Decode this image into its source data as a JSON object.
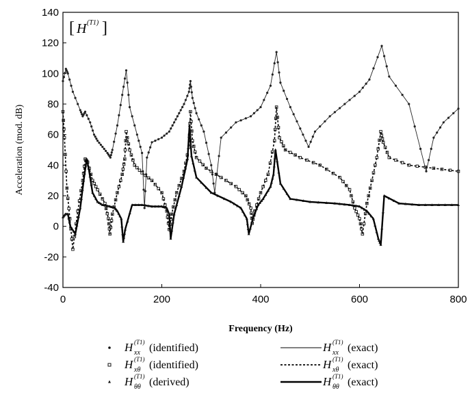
{
  "chart_data": {
    "type": "line",
    "title": "",
    "inset_label": "H",
    "inset_label_superscript": "(T1)",
    "xlabel": "Frequency (Hz)",
    "ylabel": "Acceleration (mod. dB)",
    "xlim": [
      0,
      800
    ],
    "ylim": [
      -40,
      140
    ],
    "x_ticks": [
      "0",
      "200",
      "400",
      "600",
      "800"
    ],
    "y_ticks": [
      "-40",
      "-20",
      "0",
      "20",
      "40",
      "60",
      "80",
      "100",
      "120",
      "140"
    ],
    "grid": false,
    "legend_placement": "bottom",
    "legend": [
      {
        "symbol": "H",
        "subscript": "xx",
        "superscript": "(T1)",
        "suffix": "(identified)",
        "style": "dots"
      },
      {
        "symbol": "H",
        "subscript": "xx",
        "superscript": "(T1)",
        "suffix": "(exact)",
        "style": "thin-solid"
      },
      {
        "symbol": "H",
        "subscript": "xθ",
        "superscript": "(T1)",
        "suffix": "(identified)",
        "style": "squares"
      },
      {
        "symbol": "H",
        "subscript": "xθ",
        "superscript": "(T1)",
        "suffix": "(exact)",
        "style": "dotted"
      },
      {
        "symbol": "H",
        "subscript": "θθ",
        "superscript": "(T1)",
        "suffix": "(derived)",
        "style": "triangles"
      },
      {
        "symbol": "H",
        "subscript": "θθ",
        "superscript": "(T1)",
        "suffix": "(exact)",
        "style": "thick-solid"
      }
    ],
    "series": [
      {
        "key": "xx",
        "x": [
          0,
          6,
          10,
          20,
          35,
          40,
          45,
          55,
          63,
          70,
          80,
          90,
          96,
          100,
          110,
          120,
          128,
          135,
          150,
          160,
          165,
          170,
          180,
          200,
          215,
          225,
          235,
          245,
          255,
          258,
          262,
          270,
          285,
          300,
          307,
          320,
          350,
          380,
          400,
          420,
          432,
          440,
          460,
          480,
          497,
          510,
          540,
          570,
          600,
          620,
          645,
          660,
          700,
          735,
          750,
          770,
          800
        ],
        "y": [
          95,
          103,
          100,
          88,
          76,
          72,
          75,
          68,
          60,
          56,
          52,
          48,
          45,
          50,
          66,
          86,
          102,
          78,
          60,
          48,
          12,
          45,
          55,
          58,
          62,
          68,
          74,
          80,
          88,
          95,
          84,
          74,
          62,
          40,
          22,
          58,
          68,
          72,
          78,
          92,
          114,
          94,
          78,
          64,
          52,
          62,
          72,
          80,
          88,
          96,
          118,
          98,
          80,
          36,
          58,
          68,
          77
        ]
      },
      {
        "key": "xtheta",
        "x": [
          0,
          3,
          8,
          14,
          20,
          30,
          40,
          45,
          50,
          60,
          70,
          85,
          92,
          95,
          100,
          110,
          120,
          125,
          128,
          135,
          145,
          160,
          180,
          200,
          210,
          215,
          220,
          230,
          245,
          255,
          258,
          262,
          270,
          290,
          320,
          350,
          370,
          380,
          383,
          388,
          400,
          415,
          428,
          432,
          438,
          450,
          480,
          520,
          560,
          580,
          590,
          600,
          606,
          615,
          625,
          635,
          643,
          648,
          660,
          700,
          750,
          800
        ],
        "y": [
          75,
          58,
          25,
          5,
          -15,
          10,
          30,
          44,
          42,
          30,
          24,
          15,
          5,
          -5,
          8,
          22,
          34,
          44,
          62,
          50,
          40,
          35,
          30,
          22,
          10,
          -2,
          8,
          22,
          36,
          52,
          75,
          56,
          45,
          38,
          32,
          26,
          20,
          12,
          2,
          10,
          22,
          34,
          56,
          78,
          58,
          50,
          45,
          40,
          32,
          24,
          12,
          5,
          -5,
          15,
          30,
          45,
          62,
          55,
          45,
          40,
          38,
          36
        ]
      },
      {
        "key": "thetatheta",
        "x": [
          0,
          5,
          10,
          15,
          25,
          35,
          42,
          48,
          52,
          60,
          70,
          80,
          95,
          105,
          110,
          118,
          122,
          126,
          140,
          160,
          180,
          200,
          210,
          215,
          218,
          225,
          240,
          252,
          256,
          260,
          270,
          300,
          340,
          360,
          372,
          376,
          385,
          395,
          405,
          420,
          426,
          430,
          440,
          460,
          500,
          550,
          580,
          600,
          615,
          628,
          638,
          643,
          650,
          680,
          720,
          760,
          800
        ],
        "y": [
          6,
          8,
          8,
          0,
          -5,
          12,
          30,
          44,
          38,
          22,
          16,
          14,
          13,
          12,
          10,
          5,
          -10,
          -2,
          14,
          14,
          13,
          13,
          12,
          8,
          -8,
          8,
          26,
          44,
          66,
          46,
          32,
          22,
          16,
          12,
          5,
          -5,
          6,
          14,
          18,
          26,
          34,
          50,
          28,
          18,
          16,
          15,
          14,
          13,
          10,
          5,
          -8,
          -12,
          20,
          15,
          14,
          14,
          14
        ]
      }
    ]
  }
}
